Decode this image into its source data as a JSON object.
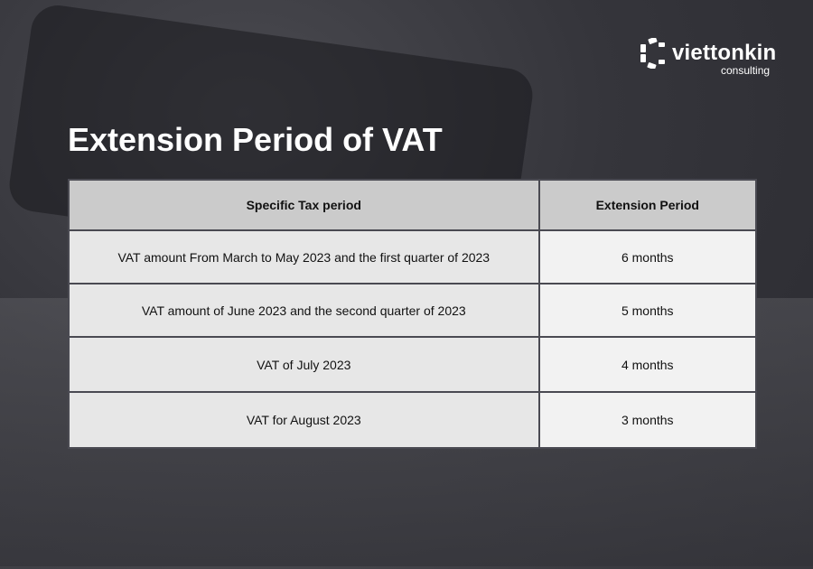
{
  "brand": {
    "name": "viettonkin",
    "tagline": "consulting"
  },
  "title": "Extension Period of VAT",
  "table": {
    "headers": [
      "Specific Tax period",
      "Extension Period"
    ],
    "rows": [
      [
        "VAT amount From March to May 2023 and the first quarter of 2023",
        "6 months"
      ],
      [
        "VAT amount of June 2023 and the second quarter of 2023",
        "5 months"
      ],
      [
        "VAT of July 2023",
        "4 months"
      ],
      [
        "VAT for August 2023",
        "3 months"
      ]
    ]
  },
  "colors": {
    "header_bg": "#cbcbcb",
    "left_cell_bg": "#e7e7e7",
    "right_cell_bg": "#f2f2f2",
    "title": "#ffffff"
  }
}
